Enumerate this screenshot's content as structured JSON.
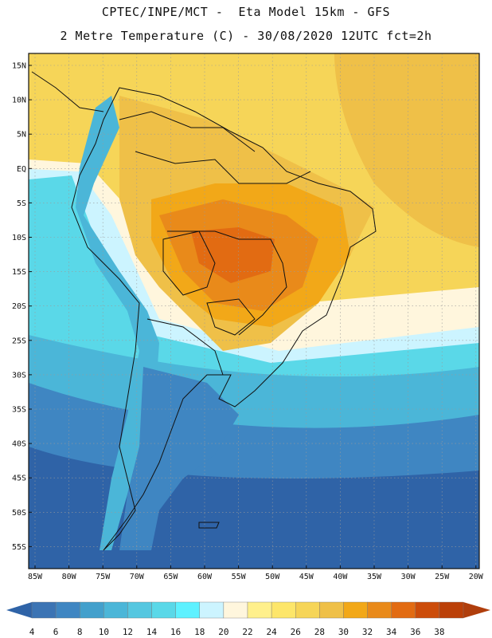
{
  "header": {
    "line1": "CPTEC/INPE/MCT -  Eta Model 15km - GFS",
    "line2": "2 Metre Temperature (C) - 30/08/2020 12UTC fct=2h"
  },
  "axes": {
    "lat_labels": [
      "15N",
      "10N",
      "5N",
      "EQ",
      "5S",
      "10S",
      "15S",
      "20S",
      "25S",
      "30S",
      "35S",
      "40S",
      "45S",
      "50S",
      "55S"
    ],
    "lon_labels": [
      "85W",
      "80W",
      "75W",
      "70W",
      "65W",
      "60W",
      "55W",
      "50W",
      "45W",
      "40W",
      "35W",
      "30W",
      "25W",
      "20W"
    ]
  },
  "colorbar": {
    "labels": [
      "4",
      "6",
      "8",
      "10",
      "12",
      "14",
      "16",
      "18",
      "20",
      "22",
      "24",
      "26",
      "28",
      "30",
      "32",
      "34",
      "36",
      "38"
    ],
    "colors": [
      "#3c74b4",
      "#3f86c2",
      "#43a0cc",
      "#4bb6d8",
      "#55c7e0",
      "#5ad8e8",
      "#5ef1ff",
      "#ccf4ff",
      "#fff6dd",
      "#fff08c",
      "#fde66a",
      "#f6d558",
      "#efc048",
      "#f2a818",
      "#e98a1a",
      "#e26b12",
      "#cc4c0a",
      "#bb4008"
    ],
    "low_arrow_color": "#2f63a7",
    "high_arrow_color": "#b03e0c"
  },
  "map_colors": {
    "ocean_deep": "#2f63a7",
    "ocean_cold": "#3f86c2",
    "ocean_mid": "#4bb6d8",
    "ocean_warm": "#5ad8e8",
    "pale": "#ccf4ff",
    "cream": "#fff6dd",
    "yellow": "#f6d558",
    "amber": "#efc048",
    "orange": "#e98a1a",
    "hot": "#e26b12",
    "land_warm": "#f2a818"
  }
}
